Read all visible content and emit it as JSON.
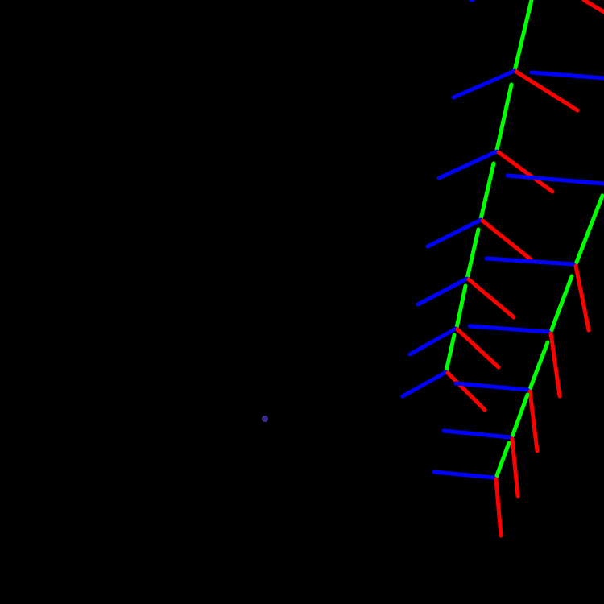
{
  "scene": {
    "background": "#000000",
    "axis_colors": {
      "x": "#ff0000",
      "y": "#00ff00",
      "z": "#0000ff"
    },
    "marker_color": "#3a2a8a",
    "icons": [
      "coordinate-frame-icon"
    ]
  }
}
